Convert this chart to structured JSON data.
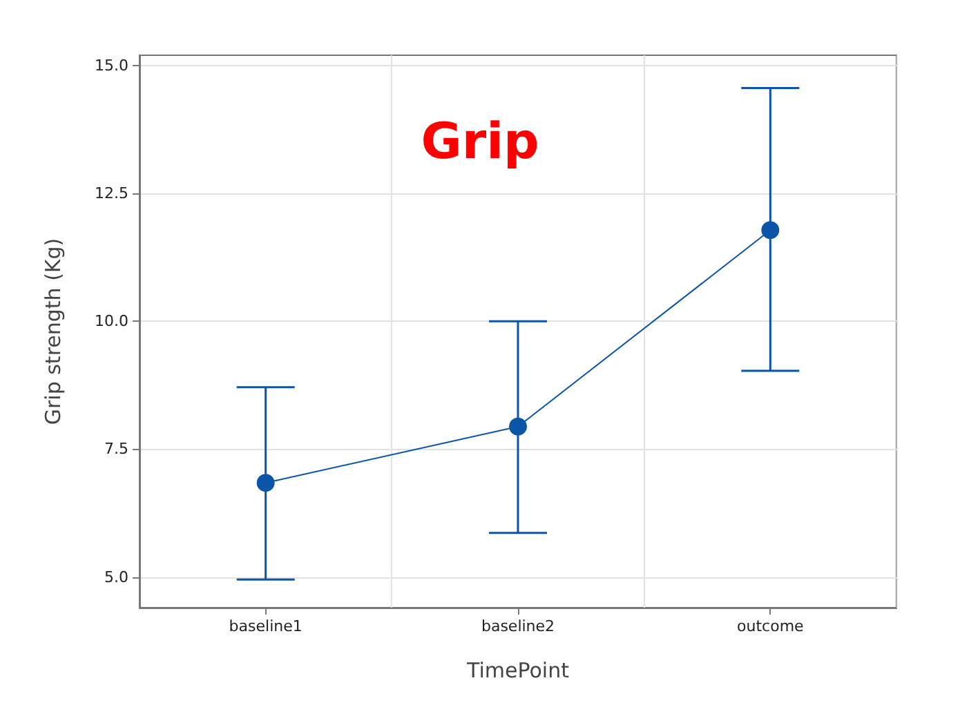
{
  "chart_data": {
    "type": "line",
    "title": "Grip",
    "xlabel": "TimePoint",
    "ylabel": "Grip strength (Kg)",
    "categories": [
      "baseline1",
      "baseline2",
      "outcome"
    ],
    "series": [
      {
        "color": "#0b55a8",
        "values": [
          6.84,
          7.94,
          11.78
        ],
        "errors": [
          [
            4.95,
            8.71
          ],
          [
            5.86,
            10.0
          ],
          [
            9.03,
            14.56
          ]
        ]
      }
    ],
    "ylim": [
      4.4,
      15.2
    ],
    "yticks": [
      {
        "value": 5,
        "label": "5.0"
      },
      {
        "value": 7.5,
        "label": "7.5"
      },
      {
        "value": 10,
        "label": "10.0"
      },
      {
        "value": 12.5,
        "label": "12.5"
      },
      {
        "value": 15,
        "label": "15.0"
      }
    ],
    "grid": true,
    "marker": "circle",
    "line_style": "solid"
  }
}
